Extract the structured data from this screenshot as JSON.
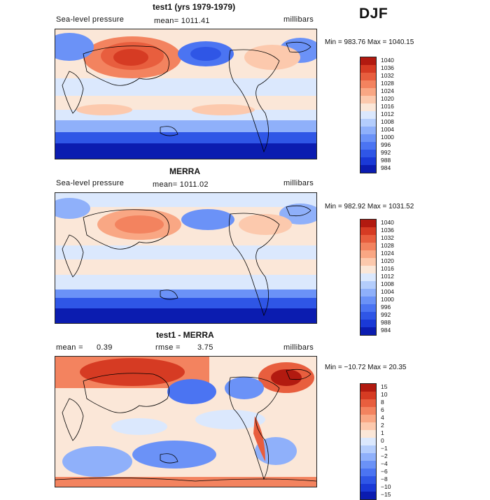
{
  "season": "DJF",
  "colors": {
    "pressure_scale": [
      "#00007f",
      "#0b1cb0",
      "#1a39d6",
      "#2f56e6",
      "#4b74f2",
      "#6b92f7",
      "#8fb0fa",
      "#b4cdfc",
      "#dbe8fd",
      "#fbe7d8",
      "#fcc9ad",
      "#f9a784",
      "#f3835f",
      "#e85e3e",
      "#d63b23",
      "#b21a10",
      "#7f0000"
    ],
    "diff_scale": [
      "#00007f",
      "#0b1cb0",
      "#1a39d6",
      "#2f56e6",
      "#4b74f2",
      "#6b92f7",
      "#8fb0fa",
      "#b4cdfc",
      "#dbe8fd",
      "#fbe7d8",
      "#fcc9ad",
      "#f9a784",
      "#f3835f",
      "#e85e3e",
      "#d63b23",
      "#b21a10",
      "#7f0000"
    ],
    "land_outline": "#000000"
  },
  "panels": [
    {
      "title": "test1 (yrs 1979-1979)",
      "variable": "Sea-level pressure",
      "stat": "mean= 1011.41",
      "units": "millibars",
      "minmax": "Min = 983.76 Max = 1040.15",
      "colorbar_labels": [
        "1040",
        "1036",
        "1032",
        "1028",
        "1024",
        "1020",
        "1016",
        "1012",
        "1008",
        "1004",
        "1000",
        "996",
        "992",
        "988",
        "984"
      ]
    },
    {
      "title": "MERRA",
      "variable": "Sea-level pressure",
      "stat": "mean= 1011.02",
      "units": "millibars",
      "minmax": "Min = 982.92 Max = 1031.52",
      "colorbar_labels": [
        "1040",
        "1036",
        "1032",
        "1028",
        "1024",
        "1020",
        "1016",
        "1012",
        "1008",
        "1004",
        "1000",
        "996",
        "992",
        "988",
        "984"
      ]
    },
    {
      "title": "test1 - MERRA",
      "mean_label": "mean =",
      "mean_value": "0.39",
      "rmse_label": "rmse =",
      "rmse_value": "3.75",
      "units": "millibars",
      "minmax": "Min = −10.72 Max =  20.35",
      "colorbar_labels": [
        "15",
        "10",
        "8",
        "6",
        "4",
        "2",
        "1",
        "0",
        "−1",
        "−2",
        "−4",
        "−6",
        "−8",
        "−10",
        "−15"
      ]
    }
  ]
}
